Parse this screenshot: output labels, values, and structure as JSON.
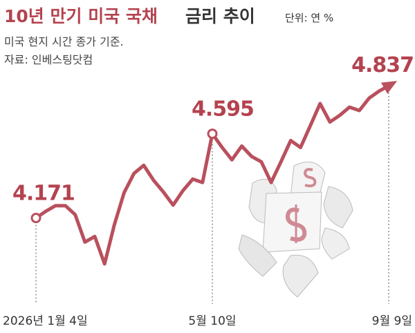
{
  "chart_data": {
    "type": "line",
    "title": "10년 만기 미국 국채",
    "title_suffix": "금리 추이",
    "unit": "단위: 연 %",
    "subtitle": "미국 현지 시간 종가 기준.",
    "source": "자료: 인베스팅닷컴",
    "categories": [
      "2026년 1월 4일",
      null,
      null,
      null,
      null,
      null,
      null,
      null,
      null,
      null,
      null,
      null,
      null,
      null,
      null,
      null,
      null,
      null,
      "5월 10일",
      null,
      null,
      null,
      null,
      null,
      null,
      null,
      null,
      null,
      null,
      null,
      null,
      null,
      null,
      null,
      null,
      null,
      "9월 9일"
    ],
    "series": [
      {
        "name": "10년 만기 미국 국채 금리",
        "color": "#b9505d",
        "values": [
          4.171,
          4.205,
          4.233,
          4.233,
          4.188,
          4.05,
          4.078,
          3.94,
          4.137,
          4.299,
          4.395,
          4.436,
          4.361,
          4.302,
          4.236,
          4.309,
          4.367,
          4.35,
          4.595,
          4.526,
          4.464,
          4.533,
          4.481,
          4.454,
          4.35,
          4.454,
          4.561,
          4.526,
          4.636,
          4.747,
          4.654,
          4.688,
          4.729,
          4.712,
          4.774,
          4.809,
          4.837
        ],
        "value_labels": [
          "4.171",
          null,
          null,
          null,
          null,
          null,
          null,
          null,
          null,
          null,
          null,
          null,
          null,
          null,
          null,
          null,
          null,
          null,
          "4.595",
          null,
          null,
          null,
          null,
          null,
          null,
          null,
          null,
          null,
          null,
          null,
          null,
          null,
          null,
          null,
          null,
          null,
          "4.837"
        ]
      }
    ]
  }
}
